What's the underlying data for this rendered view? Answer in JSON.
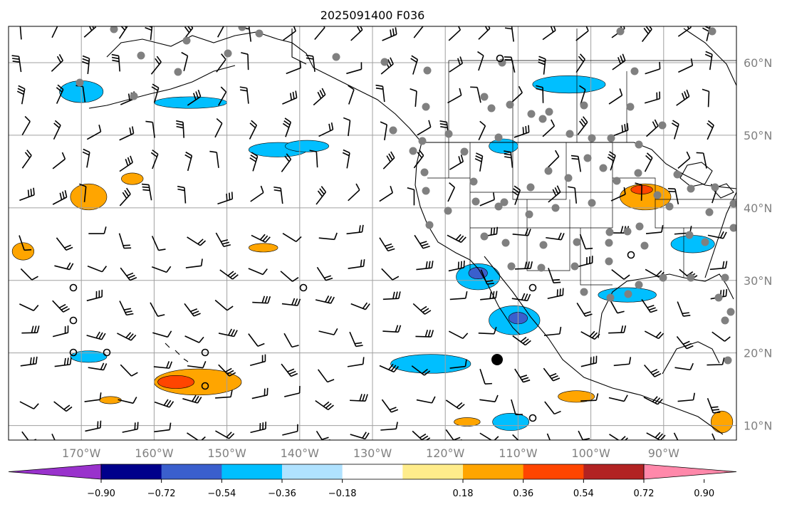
{
  "title": "2025091400 F036",
  "map": {
    "lon_range": [
      -180,
      -80
    ],
    "lat_range": [
      8,
      65
    ],
    "lat_ticks": [
      {
        "value": 60,
        "label": "60°N"
      },
      {
        "value": 50,
        "label": "50°N"
      },
      {
        "value": 40,
        "label": "40°N"
      },
      {
        "value": 30,
        "label": "30°N"
      },
      {
        "value": 20,
        "label": "20°N"
      },
      {
        "value": 10,
        "label": "10°N"
      }
    ],
    "lon_ticks": [
      {
        "value": -170,
        "label": "170°W"
      },
      {
        "value": -160,
        "label": "160°W"
      },
      {
        "value": -150,
        "label": "150°W"
      },
      {
        "value": -140,
        "label": "140°W"
      },
      {
        "value": -130,
        "label": "130°W"
      },
      {
        "value": -120,
        "label": "120°W"
      },
      {
        "value": -110,
        "label": "110°W"
      },
      {
        "value": -100,
        "label": "100°W"
      },
      {
        "value": -90,
        "label": "90°W"
      }
    ],
    "grid": true,
    "colors": {
      "land_lines": "#000000",
      "grid": "#a0a0a0",
      "station_dots": "#808080"
    }
  },
  "colorbar": {
    "extend": "both",
    "bins": [
      {
        "color": "#9932cc"
      },
      {
        "color": "#00008b"
      },
      {
        "color": "#3a5fcd"
      },
      {
        "color": "#00bfff"
      },
      {
        "color": "#b0e2ff"
      },
      {
        "color": "#ffffff"
      },
      {
        "color": "#ffec8b"
      },
      {
        "color": "#ffa500"
      },
      {
        "color": "#ff4500"
      },
      {
        "color": "#b22222"
      },
      {
        "color": "#ff88aa"
      }
    ],
    "ticks": [
      {
        "value": -0.9,
        "label": "−0.90"
      },
      {
        "value": -0.72,
        "label": "−0.72"
      },
      {
        "value": -0.54,
        "label": "−0.54"
      },
      {
        "value": -0.36,
        "label": "−0.36"
      },
      {
        "value": -0.18,
        "label": "−0.18"
      },
      {
        "value": 0.18,
        "label": "0.18"
      },
      {
        "value": 0.36,
        "label": "0.36"
      },
      {
        "value": 0.54,
        "label": "0.54"
      },
      {
        "value": 0.72,
        "label": "0.72"
      },
      {
        "value": 0.9,
        "label": "0.90"
      }
    ]
  },
  "fields": [
    {
      "lon": -170,
      "lat": 56,
      "rx": 3,
      "ry": 1.5,
      "color": "#00bfff"
    },
    {
      "lon": -155,
      "lat": 54.5,
      "rx": 5,
      "ry": 0.8,
      "color": "#00bfff"
    },
    {
      "lon": -143,
      "lat": 48,
      "rx": 4,
      "ry": 1,
      "color": "#00bfff"
    },
    {
      "lon": -139,
      "lat": 48.5,
      "rx": 3,
      "ry": 0.8,
      "color": "#00bfff"
    },
    {
      "lon": -103,
      "lat": 57,
      "rx": 5,
      "ry": 1.2,
      "color": "#00bfff"
    },
    {
      "lon": -112,
      "lat": 48.5,
      "rx": 2,
      "ry": 1,
      "color": "#00bfff"
    },
    {
      "lon": -115.5,
      "lat": 30.5,
      "rx": 3,
      "ry": 1.8,
      "color": "#00bfff"
    },
    {
      "lon": -115.5,
      "lat": 31,
      "rx": 1.3,
      "ry": 0.8,
      "color": "#3a5fcd"
    },
    {
      "lon": -110.5,
      "lat": 24.5,
      "rx": 3.5,
      "ry": 2,
      "color": "#00bfff"
    },
    {
      "lon": -110,
      "lat": 24.8,
      "rx": 1.3,
      "ry": 0.8,
      "color": "#3a5fcd"
    },
    {
      "lon": -122,
      "lat": 18.5,
      "rx": 5.5,
      "ry": 1.3,
      "color": "#00bfff"
    },
    {
      "lon": -86,
      "lat": 35,
      "rx": 3,
      "ry": 1.2,
      "color": "#00bfff"
    },
    {
      "lon": -95,
      "lat": 28,
      "rx": 4,
      "ry": 1,
      "color": "#00bfff"
    },
    {
      "lon": -169,
      "lat": 19.5,
      "rx": 2.5,
      "ry": 0.8,
      "color": "#00bfff"
    },
    {
      "lon": -111,
      "lat": 10.5,
      "rx": 2.5,
      "ry": 1.2,
      "color": "#00bfff"
    },
    {
      "lon": -169,
      "lat": 41.5,
      "rx": 2.5,
      "ry": 1.8,
      "color": "#ffa500"
    },
    {
      "lon": -154,
      "lat": 16,
      "rx": 6,
      "ry": 1.8,
      "color": "#ffa500"
    },
    {
      "lon": -157,
      "lat": 16,
      "rx": 2.5,
      "ry": 0.9,
      "color": "#ff4500"
    },
    {
      "lon": -145,
      "lat": 34.5,
      "rx": 2,
      "ry": 0.6,
      "color": "#ffa500"
    },
    {
      "lon": -92.5,
      "lat": 41.5,
      "rx": 3.5,
      "ry": 1.8,
      "color": "#ffa500"
    },
    {
      "lon": -93,
      "lat": 42.5,
      "rx": 1.5,
      "ry": 0.6,
      "color": "#ff4500"
    },
    {
      "lon": -178,
      "lat": 34,
      "rx": 1.5,
      "ry": 1.2,
      "color": "#ffa500"
    },
    {
      "lon": -102,
      "lat": 14,
      "rx": 2.5,
      "ry": 0.8,
      "color": "#ffa500"
    },
    {
      "lon": -117,
      "lat": 10.5,
      "rx": 1.8,
      "ry": 0.6,
      "color": "#ffa500"
    },
    {
      "lon": -82,
      "lat": 10.5,
      "rx": 1.5,
      "ry": 1.5,
      "color": "#ffa500"
    },
    {
      "lon": -163,
      "lat": 44,
      "rx": 1.5,
      "ry": 0.8,
      "color": "#ffa500"
    },
    {
      "lon": -166,
      "lat": 13.5,
      "rx": 1.5,
      "ry": 0.5,
      "color": "#ffa500"
    }
  ]
}
